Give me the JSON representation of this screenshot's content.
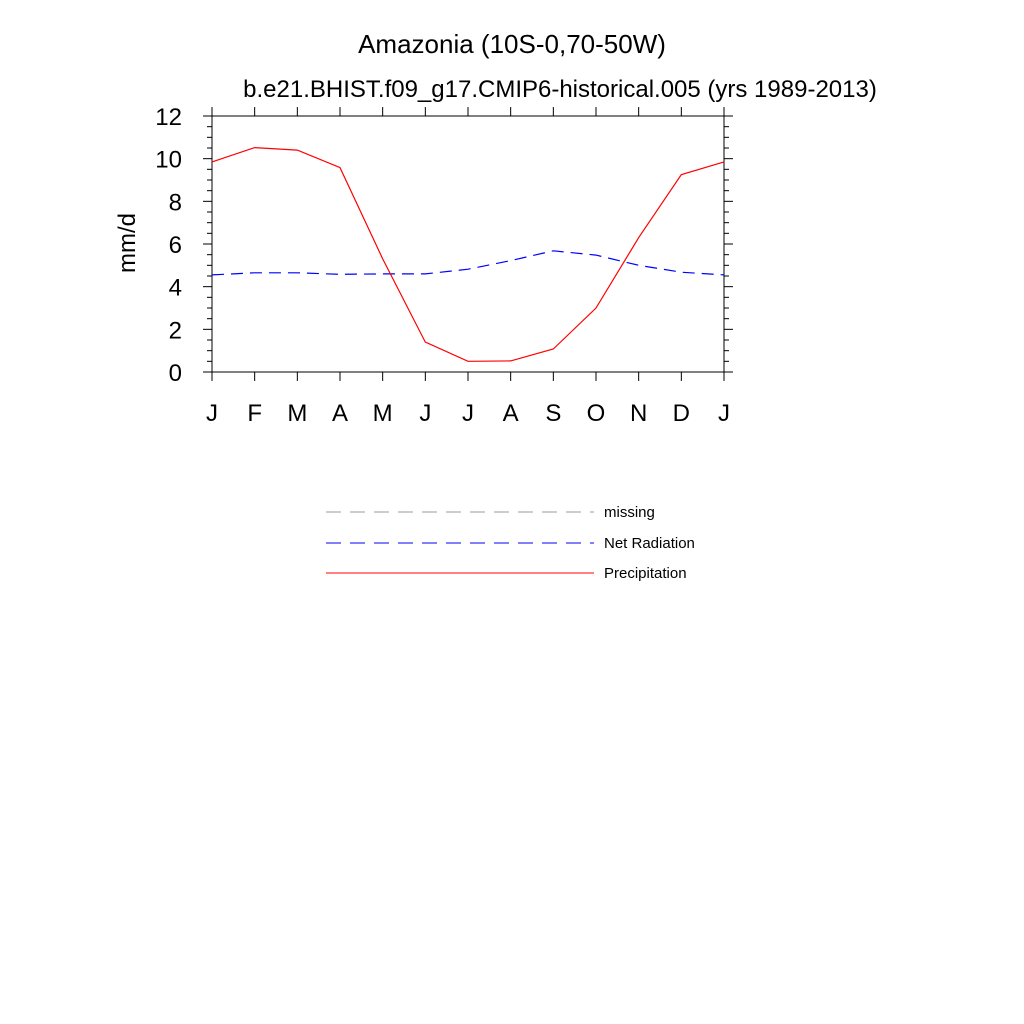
{
  "chart_data": {
    "type": "line",
    "title": "Amazonia (10S-0,70-50W)",
    "subtitle": "b.e21.BHIST.f09_g17.CMIP6-historical.005 (yrs 1989-2013)",
    "xlabel": "",
    "ylabel": "mm/d",
    "ylim": [
      0,
      12
    ],
    "yticks": [
      "0",
      "2",
      "4",
      "6",
      "8",
      "10",
      "12"
    ],
    "categories": [
      "J",
      "F",
      "M",
      "A",
      "M",
      "J",
      "J",
      "A",
      "S",
      "O",
      "N",
      "D",
      "J"
    ],
    "series": [
      {
        "name": "Net Radiation",
        "color": "#0000ff",
        "dash": "dashed",
        "values": [
          4.55,
          4.65,
          4.65,
          4.58,
          4.6,
          4.6,
          4.82,
          5.22,
          5.68,
          5.48,
          5.0,
          4.68,
          4.55
        ]
      },
      {
        "name": "Precipitation",
        "color": "#ff0000",
        "dash": "solid",
        "values": [
          9.85,
          10.52,
          10.4,
          9.58,
          5.3,
          1.4,
          0.5,
          0.52,
          1.08,
          3.0,
          6.3,
          9.25,
          9.85
        ]
      }
    ],
    "legend": [
      {
        "label": "missing",
        "color": "#999999",
        "dash": "dashed"
      },
      {
        "label": "Net Radiation",
        "color": "#0000ff",
        "dash": "dashed"
      },
      {
        "label": "Precipitation",
        "color": "#ff0000",
        "dash": "solid"
      }
    ]
  }
}
